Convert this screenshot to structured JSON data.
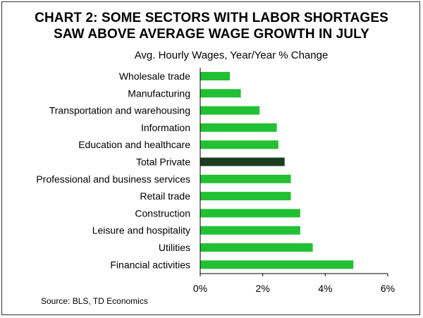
{
  "header": {
    "title_line1": "CHART 2: SOME SECTORS WITH LABOR SHORTAGES",
    "title_line2": "SAW ABOVE AVERAGE WAGE GROWTH IN JULY",
    "subtitle": "Avg. Hourly Wages, Year/Year % Change"
  },
  "footer": {
    "source": "Source: BLS, TD Economics"
  },
  "colors": {
    "bar": "#22c033",
    "highlight": "#1a3d22",
    "axis": "#000000"
  },
  "chart_data": {
    "type": "bar",
    "orientation": "horizontal",
    "title": "CHART 2: SOME SECTORS WITH LABOR SHORTAGES SAW ABOVE AVERAGE WAGE GROWTH IN JULY",
    "subtitle": "Avg. Hourly Wages, Year/Year % Change",
    "categories": [
      "Wholesale trade",
      "Manufacturing",
      "Transportation and warehousing",
      "Information",
      "Education and healthcare",
      "Total Private",
      "Professional and business services",
      "Retail trade",
      "Construction",
      "Leisure and hospitality",
      "Utilities",
      "Financial activities"
    ],
    "values": [
      0.95,
      1.3,
      1.9,
      2.45,
      2.5,
      2.7,
      2.9,
      2.9,
      3.2,
      3.2,
      3.6,
      4.9
    ],
    "highlight": "Total Private",
    "xlim": [
      0,
      6
    ],
    "xticks": [
      0,
      2,
      4,
      6
    ],
    "xtick_labels": [
      "0%",
      "2%",
      "4%",
      "6%"
    ],
    "grid": false,
    "source": "Source: BLS, TD Economics"
  }
}
